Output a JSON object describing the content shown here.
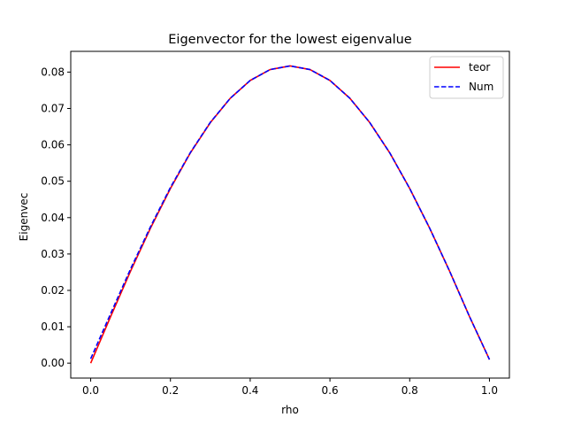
{
  "chart_data": {
    "type": "line",
    "title": "Eigenvector for the lowest eigenvalue",
    "xlabel": "rho",
    "ylabel": "Eigenvec",
    "xlim": [
      -0.05,
      1.05
    ],
    "ylim": [
      -0.0041,
      0.0857
    ],
    "x_ticks": [
      0.0,
      0.2,
      0.4,
      0.6,
      0.8,
      1.0
    ],
    "x_tick_labels": [
      "0.0",
      "0.2",
      "0.4",
      "0.6",
      "0.8",
      "1.0"
    ],
    "y_ticks": [
      0.0,
      0.01,
      0.02,
      0.03,
      0.04,
      0.05,
      0.06,
      0.07,
      0.08
    ],
    "y_tick_labels": [
      "0.00",
      "0.01",
      "0.02",
      "0.03",
      "0.04",
      "0.05",
      "0.06",
      "0.07",
      "0.08"
    ],
    "grid": false,
    "legend_position": "top-right",
    "x": [
      0.0,
      0.05,
      0.1,
      0.15,
      0.2,
      0.25,
      0.3,
      0.35,
      0.4,
      0.45,
      0.5,
      0.55,
      0.6,
      0.65,
      0.7,
      0.75,
      0.8,
      0.85,
      0.9,
      0.95,
      1.0
    ],
    "series": [
      {
        "name": "teor",
        "color": "#ff0000",
        "style": "solid",
        "values": [
          0.0,
          0.0128,
          0.0253,
          0.0371,
          0.048,
          0.0578,
          0.0661,
          0.0728,
          0.0777,
          0.0807,
          0.0817,
          0.0807,
          0.0777,
          0.0728,
          0.0661,
          0.0578,
          0.048,
          0.0371,
          0.0253,
          0.0128,
          0.001
        ]
      },
      {
        "name": "Num",
        "color": "#0000ff",
        "style": "dashed",
        "values": [
          0.0012,
          0.0136,
          0.0259,
          0.0375,
          0.0483,
          0.0579,
          0.0662,
          0.0728,
          0.0777,
          0.0807,
          0.0817,
          0.0807,
          0.0777,
          0.0728,
          0.0661,
          0.0578,
          0.048,
          0.0371,
          0.0253,
          0.0128,
          0.001
        ]
      }
    ]
  }
}
